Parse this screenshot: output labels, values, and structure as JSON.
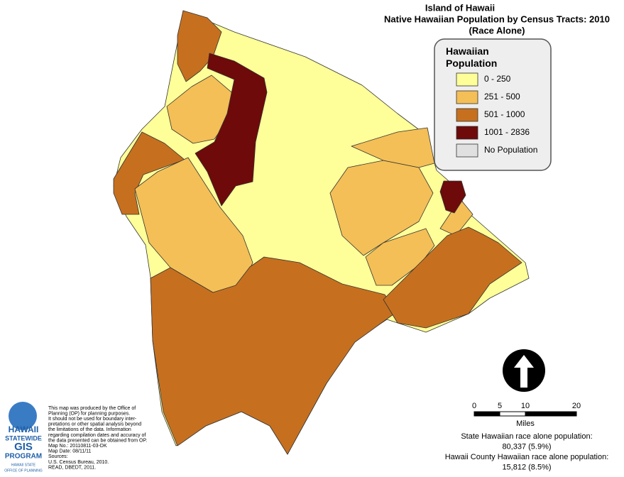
{
  "header": {
    "title": "Island of Hawaii",
    "subtitle": "Native Hawaiian Population by Census Tracts: 2010",
    "note": "(Race Alone)"
  },
  "legend": {
    "title": "Hawaiian Population",
    "items": [
      {
        "label": "0 - 250",
        "color": "#ffff99"
      },
      {
        "label": "251 - 500",
        "color": "#f4bf57"
      },
      {
        "label": "501 - 1000",
        "color": "#c6701f"
      },
      {
        "label": "1001 - 2836",
        "color": "#6e0a0a"
      },
      {
        "label": "No Population",
        "color": "#e0e0e0"
      }
    ]
  },
  "scale_bar": {
    "ticks": [
      0,
      5,
      10,
      20
    ],
    "unit": "Miles"
  },
  "stats": [
    "State Hawaiian race alone population:",
    "80,337 (5.9%)",
    "Hawaii County Hawaiian race alone population:",
    "15,812 (8.5%)"
  ],
  "disclaimer": [
    "This map was produced by the Office of",
    "Planning (OP) for planning purposes.",
    "It should not be used for boundary inter-",
    "pretations or other spatial analysis beyond",
    "the limitations of the data.  Information",
    "regarding compilation dates and accuracy of",
    "the data presented can be obtained from OP.",
    "Map No.: 20110811-03-DK",
    "Map Date: 08/11/11",
    "Sources:",
    "U.S. Census Bureau, 2010.",
    "READ, DBEDT, 2011."
  ],
  "logo": {
    "line1": "HAWAII",
    "line2": "STATEWIDE",
    "line3": "GIS",
    "line4": "PROGRAM",
    "line5": "HAWAII STATE",
    "line6": "OFFICE OF PLANNING"
  }
}
